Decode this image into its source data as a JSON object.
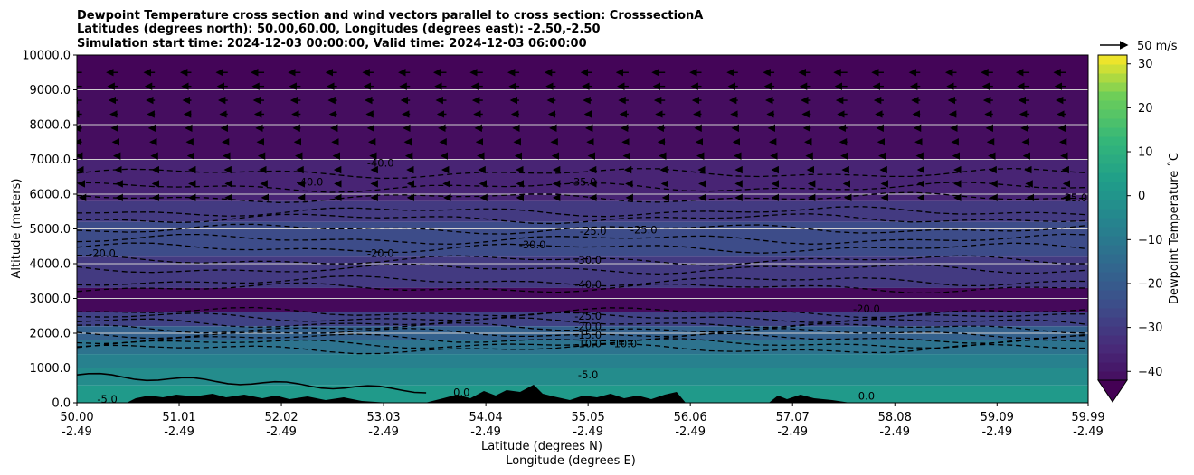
{
  "chart_data": {
    "type": "heatmap",
    "title_lines": [
      "Dewpoint Temperature cross section and wind vectors parallel to cross section: CrosssectionA",
      "Latitudes (degrees north): 50.00,60.00, Longitudes (degrees east): -2.50,-2.50",
      "Simulation start time: 2024-12-03 00:00:00, Valid time: 2024-12-03 06:00:00"
    ],
    "xlabel_primary": "Latitude (degrees N)",
    "xlabel_secondary": "Longitude (degrees E)",
    "ylabel": "Altitude (meters)",
    "x_ticks": [
      {
        "lat": "50.00",
        "lon": "-2.49"
      },
      {
        "lat": "51.01",
        "lon": "-2.49"
      },
      {
        "lat": "52.02",
        "lon": "-2.49"
      },
      {
        "lat": "53.03",
        "lon": "-2.49"
      },
      {
        "lat": "54.04",
        "lon": "-2.49"
      },
      {
        "lat": "55.05",
        "lon": "-2.49"
      },
      {
        "lat": "56.06",
        "lon": "-2.49"
      },
      {
        "lat": "57.07",
        "lon": "-2.49"
      },
      {
        "lat": "58.08",
        "lon": "-2.49"
      },
      {
        "lat": "59.09",
        "lon": "-2.49"
      },
      {
        "lat": "59.99",
        "lon": "-2.49"
      }
    ],
    "xlim": [
      50.0,
      59.99
    ],
    "y_ticks": [
      "0.0",
      "1000.0",
      "2000.0",
      "3000.0",
      "4000.0",
      "5000.0",
      "6000.0",
      "7000.0",
      "8000.0",
      "9000.0",
      "10000.0"
    ],
    "ylim": [
      0,
      10000
    ],
    "grid": "horizontal lines at y ticks",
    "colorbar": {
      "label": "Dewpoint Temperature ˚C",
      "ticks": [
        "30",
        "20",
        "10",
        "0",
        "−10",
        "−20",
        "−30",
        "−40"
      ],
      "range": [
        -45,
        32
      ],
      "extend": "min",
      "colormap": "viridis"
    },
    "wind_key_label": "50 m/s",
    "field_layers": [
      {
        "z_bottom": 9000,
        "z_top": 10000,
        "value": -44
      },
      {
        "z_bottom": 7000,
        "z_top": 9000,
        "value": -42
      },
      {
        "z_bottom": 5800,
        "z_top": 7000,
        "value": -36
      },
      {
        "z_bottom": 5200,
        "z_top": 5800,
        "value": -30
      },
      {
        "z_bottom": 4200,
        "z_top": 5200,
        "value": -25
      },
      {
        "z_bottom": 3300,
        "z_top": 4200,
        "value": -30
      },
      {
        "z_bottom": 2600,
        "z_top": 3300,
        "value": -43
      },
      {
        "z_bottom": 2200,
        "z_top": 2600,
        "value": -28
      },
      {
        "z_bottom": 1800,
        "z_top": 2200,
        "value": -18
      },
      {
        "z_bottom": 1400,
        "z_top": 1800,
        "value": -12
      },
      {
        "z_bottom": 1000,
        "z_top": 1400,
        "value": -7
      },
      {
        "z_bottom": 500,
        "z_top": 1000,
        "value": -3
      },
      {
        "z_bottom": 0,
        "z_top": 500,
        "value": 2
      }
    ],
    "contour_labels": [
      {
        "text": "-35.0",
        "lat": 55.0,
        "z": 6350
      },
      {
        "text": "-40.0",
        "lat": 52.3,
        "z": 6350
      },
      {
        "text": "-40.0",
        "lat": 53.0,
        "z": 6900
      },
      {
        "text": "-35.0",
        "lat": 59.85,
        "z": 5900
      },
      {
        "text": "-20.0",
        "lat": 50.25,
        "z": 4300
      },
      {
        "text": "-20.0",
        "lat": 53.0,
        "z": 4300
      },
      {
        "text": "-25.0",
        "lat": 55.6,
        "z": 4970
      },
      {
        "text": "-25.0",
        "lat": 55.1,
        "z": 4940
      },
      {
        "text": "-30.0",
        "lat": 54.5,
        "z": 4550
      },
      {
        "text": "-30.0",
        "lat": 55.05,
        "z": 4100
      },
      {
        "text": "-40.0",
        "lat": 55.05,
        "z": 3400
      },
      {
        "text": "-20.0",
        "lat": 57.8,
        "z": 2700
      },
      {
        "text": "-25.0",
        "lat": 55.05,
        "z": 2500
      },
      {
        "text": "-20.0",
        "lat": 55.05,
        "z": 2200
      },
      {
        "text": "-15.0",
        "lat": 55.05,
        "z": 1950
      },
      {
        "text": "-10.0",
        "lat": 55.05,
        "z": 1700
      },
      {
        "text": "-10.0",
        "lat": 55.4,
        "z": 1700
      },
      {
        "text": "-5.0",
        "lat": 55.05,
        "z": 800
      },
      {
        "text": "-5.0",
        "lat": 50.3,
        "z": 100
      },
      {
        "text": "0.0",
        "lat": 53.8,
        "z": 300
      },
      {
        "text": "0.0",
        "lat": 57.8,
        "z": 200
      }
    ]
  }
}
